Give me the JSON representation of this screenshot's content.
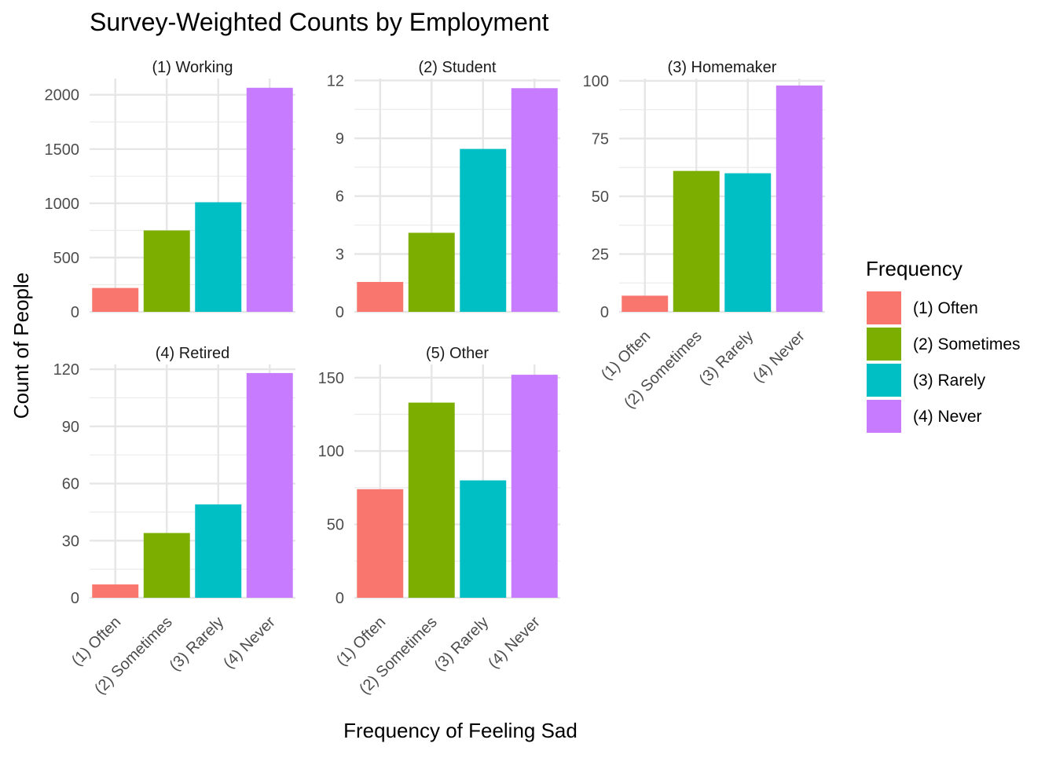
{
  "chart_data": {
    "type": "bar",
    "title": "Survey-Weighted Counts by Employment",
    "xlabel": "Frequency of Feeling Sad",
    "ylabel": "Count of People",
    "categories": [
      "(1) Often",
      "(2) Sometimes",
      "(3) Rarely",
      "(4) Never"
    ],
    "legend": {
      "title": "Frequency",
      "placement": "right",
      "entries": [
        "(1) Often",
        "(2) Sometimes",
        "(3) Rarely",
        "(4) Never"
      ]
    },
    "colors": [
      "#F8766D",
      "#7CAE00",
      "#00BFC4",
      "#C77CFF"
    ],
    "grid": true,
    "facets": [
      {
        "label": "(1) Working",
        "values": [
          220,
          750,
          1010,
          2065
        ],
        "ylim": [
          0,
          2150
        ],
        "ticks": [
          0,
          500,
          1000,
          1500,
          2000
        ]
      },
      {
        "label": "(2) Student",
        "values": [
          1.55,
          4.1,
          8.45,
          11.6
        ],
        "ylim": [
          0,
          12.1
        ],
        "ticks": [
          0,
          3,
          6,
          9,
          12
        ]
      },
      {
        "label": "(3) Homemaker",
        "values": [
          7,
          61,
          60,
          98
        ],
        "ylim": [
          0,
          101
        ],
        "ticks": [
          0,
          25,
          50,
          75,
          100
        ]
      },
      {
        "label": "(4) Retired",
        "values": [
          7,
          34,
          49,
          118
        ],
        "ylim": [
          0,
          122.5
        ],
        "ticks": [
          0,
          30,
          60,
          90,
          120
        ]
      },
      {
        "label": "(5) Other",
        "values": [
          74,
          133,
          80,
          152
        ],
        "ylim": [
          0,
          159
        ],
        "ticks": [
          0,
          50,
          100,
          150
        ]
      }
    ]
  }
}
